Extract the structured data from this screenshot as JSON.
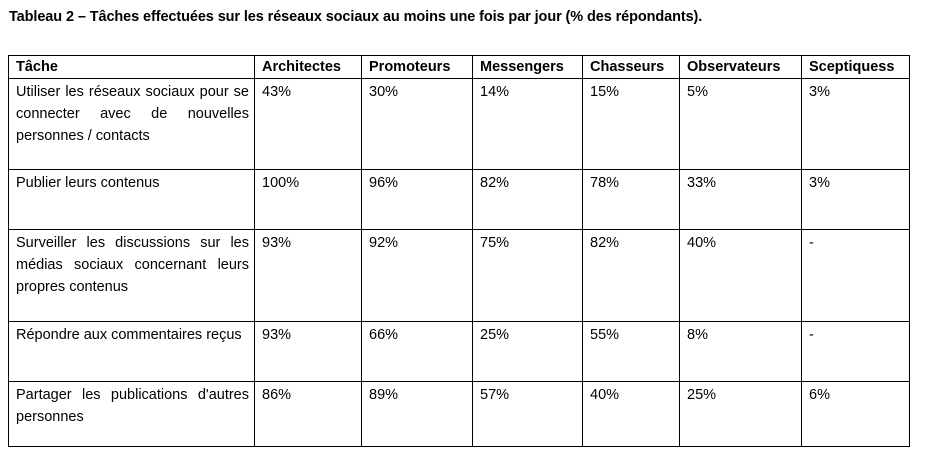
{
  "caption": "Tableau 2 – Tâches effectuées sur les réseaux sociaux au moins une fois par jour (% des répondants).",
  "table": {
    "headers": [
      "Tâche",
      "Architectes",
      "Promoteurs",
      "Messengers",
      "Chasseurs",
      "Observateurs",
      "Sceptiquess"
    ],
    "rows": [
      {
        "task": "Utiliser les réseaux sociaux pour se connecter avec de nouvelles personnes / contacts",
        "values": [
          "43%",
          "30%",
          "14%",
          "15%",
          "5%",
          "3%"
        ]
      },
      {
        "task": "Publier leurs contenus",
        "values": [
          "100%",
          "96%",
          "82%",
          "78%",
          "33%",
          "3%"
        ]
      },
      {
        "task": "Surveiller les discussions sur les médias sociaux concernant leurs propres contenus",
        "values": [
          "93%",
          "92%",
          "75%",
          "82%",
          "40%",
          "-"
        ]
      },
      {
        "task": "Répondre aux commentaires reçus",
        "values": [
          "93%",
          "66%",
          "25%",
          "55%",
          "8%",
          "-"
        ]
      },
      {
        "task": "Partager les publications d'autres personnes",
        "values": [
          "86%",
          "89%",
          "57%",
          "40%",
          "25%",
          "6%"
        ]
      }
    ]
  }
}
